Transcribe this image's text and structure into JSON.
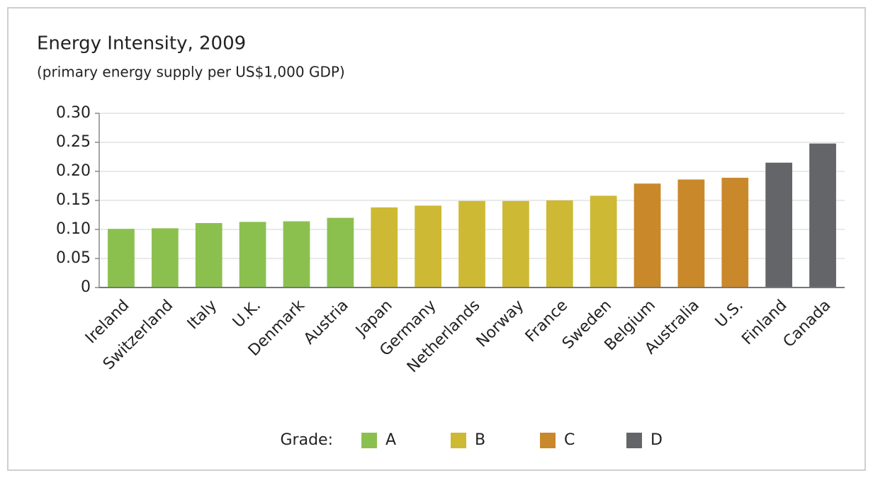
{
  "chart_data": {
    "type": "bar",
    "title": "Energy Intensity, 2009",
    "subtitle": "(primary energy supply per US$1,000 GDP)",
    "categories": [
      "Ireland",
      "Switzerland",
      "Italy",
      "U.K.",
      "Denmark",
      "Austria",
      "Japan",
      "Germany",
      "Netherlands",
      "Norway",
      "France",
      "Sweden",
      "Belgium",
      "Australia",
      "U.S.",
      "Finland",
      "Canada"
    ],
    "legend_title": "Grade:",
    "series": [
      {
        "name": "A",
        "color": "#8bc04f",
        "values": [
          0.101,
          0.102,
          0.111,
          0.113,
          0.114,
          0.12,
          null,
          null,
          null,
          null,
          null,
          null,
          null,
          null,
          null,
          null,
          null
        ]
      },
      {
        "name": "B",
        "color": "#cdb934",
        "values": [
          null,
          null,
          null,
          null,
          null,
          null,
          0.138,
          0.141,
          0.149,
          0.149,
          0.15,
          0.158,
          null,
          null,
          null,
          null,
          null
        ]
      },
      {
        "name": "C",
        "color": "#c9882a",
        "values": [
          null,
          null,
          null,
          null,
          null,
          null,
          null,
          null,
          null,
          null,
          null,
          null,
          0.179,
          0.186,
          0.189,
          null,
          null
        ]
      },
      {
        "name": "D",
        "color": "#646569",
        "values": [
          null,
          null,
          null,
          null,
          null,
          null,
          null,
          null,
          null,
          null,
          null,
          null,
          null,
          null,
          null,
          0.215,
          0.248
        ]
      }
    ],
    "ylim": [
      0,
      0.3
    ],
    "yticks": [
      0,
      0.05,
      {
        "value": 0.1,
        "label": "0.10"
      },
      0.15,
      {
        "value": 0.2,
        "label": "0.20"
      },
      0.25,
      {
        "value": 0.3,
        "label": "0.30"
      }
    ],
    "grid": true
  }
}
